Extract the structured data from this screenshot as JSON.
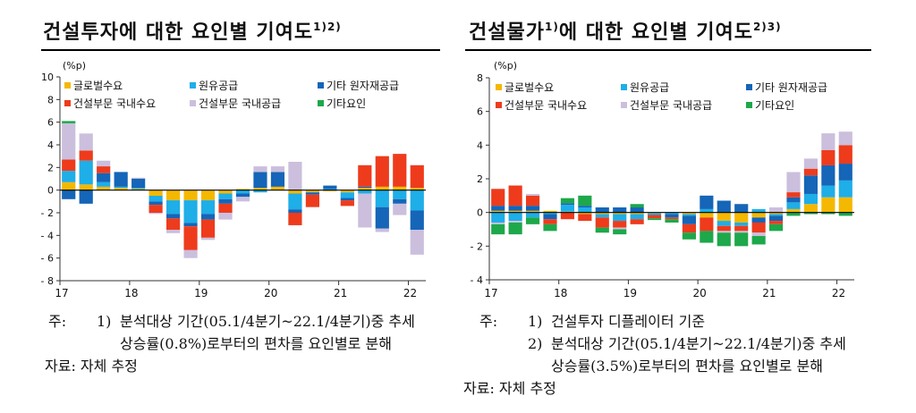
{
  "colors": {
    "global_demand": "#F5B800",
    "oil_supply": "#1EAEE8",
    "other_raw_supply": "#1565B8",
    "domestic_demand": "#EE3B1C",
    "domestic_supply": "#CBBFDD",
    "other_factors": "#1DA84A"
  },
  "chart_data": [
    {
      "type": "bar",
      "stacked": true,
      "title": "건설투자에 대한 요인별 기여도",
      "title_sup": "1)2)",
      "unit": "(%p)",
      "ylim": [
        -8,
        10
      ],
      "yticks": [
        "10",
        "8",
        "6",
        "4",
        "2",
        "0",
        "- 2",
        "- 4",
        "- 6",
        "- 8"
      ],
      "xticks": [
        "17",
        "18",
        "19",
        "20",
        "21",
        "22"
      ],
      "legend": [
        "글로벌수요",
        "원유공급",
        "기타 원자재공급",
        "건설부문 국내수요",
        "건설부문 국내공급",
        "기타요인"
      ],
      "categories": [
        "17Q1",
        "17Q2",
        "17Q3",
        "17Q4",
        "18Q1",
        "18Q2",
        "18Q3",
        "18Q4",
        "19Q1",
        "19Q2",
        "19Q3",
        "19Q4",
        "20Q1",
        "20Q2",
        "20Q3",
        "20Q4",
        "21Q1",
        "21Q2",
        "21Q3",
        "21Q4",
        "22Q1"
      ],
      "series": [
        {
          "name": "글로벌수요",
          "values": [
            0.7,
            0.5,
            0.3,
            0.2,
            0.1,
            -0.5,
            -0.9,
            -0.9,
            -0.9,
            -0.3,
            0.1,
            0.2,
            0.3,
            -0.3,
            -0.2,
            -0.1,
            -0.2,
            0.2,
            0.3,
            0.3,
            0.2
          ]
        },
        {
          "name": "원유공급",
          "values": [
            1.0,
            2.1,
            0.4,
            0.1,
            0.1,
            -0.5,
            -1.2,
            -2.0,
            -1.2,
            -0.5,
            -0.3,
            -0.2,
            0.0,
            -1.4,
            0.0,
            0.1,
            -0.5,
            -0.3,
            -1.5,
            -0.8,
            -1.8
          ]
        },
        {
          "name": "기타 원자재공급",
          "values": [
            -0.8,
            -1.2,
            0.8,
            1.3,
            0.8,
            -0.3,
            -0.4,
            -0.3,
            -0.5,
            -0.4,
            -0.3,
            1.4,
            1.3,
            -0.3,
            -0.2,
            0.3,
            -0.2,
            0.1,
            -1.9,
            -0.4,
            -1.7
          ]
        },
        {
          "name": "건설부문 국내수요",
          "values": [
            1.0,
            0.9,
            0.6,
            0.0,
            0.0,
            -0.7,
            -1.0,
            -2.1,
            -1.6,
            -0.8,
            0.0,
            0.0,
            0.0,
            -1.1,
            -1.1,
            0.0,
            -0.5,
            1.9,
            2.7,
            2.9,
            2.0
          ]
        },
        {
          "name": "건설부문 국내공급",
          "values": [
            3.2,
            1.5,
            0.5,
            0.0,
            0.1,
            -0.1,
            -0.3,
            -0.7,
            -0.2,
            -0.6,
            -0.4,
            0.5,
            0.5,
            2.5,
            0.0,
            0.0,
            0.0,
            -3.0,
            -0.3,
            -1.0,
            -2.2
          ]
        },
        {
          "name": "기타요인",
          "values": [
            0.2,
            0.0,
            0.0,
            0.0,
            0.0,
            0.0,
            0.0,
            0.0,
            0.0,
            0.0,
            0.0,
            0.0,
            0.0,
            0.0,
            0.0,
            0.0,
            0.0,
            0.0,
            0.0,
            0.0,
            0.0
          ]
        }
      ]
    },
    {
      "type": "bar",
      "stacked": true,
      "title": "건설물가에 대한 요인별 기여도",
      "title_pre": "건설물가",
      "title_pre_sup": "1)",
      "title_post": "에 대한 요인별 기여도",
      "title_sup": "2)3)",
      "unit": "(%p)",
      "ylim": [
        -4,
        8
      ],
      "yticks": [
        "8",
        "6",
        "4",
        "2",
        "0",
        "- 2",
        "- 4"
      ],
      "xticks": [
        "17",
        "18",
        "19",
        "20",
        "21",
        "22"
      ],
      "legend": [
        "글로벌수요",
        "원유공급",
        "기타 원자재공급",
        "건설부문 국내수요",
        "건설부문 국내공급",
        "기타요인"
      ],
      "categories": [
        "17Q1",
        "17Q2",
        "17Q3",
        "17Q4",
        "18Q1",
        "18Q2",
        "18Q3",
        "18Q4",
        "19Q1",
        "19Q2",
        "19Q3",
        "19Q4",
        "20Q1",
        "20Q2",
        "20Q3",
        "20Q4",
        "21Q1",
        "21Q2",
        "21Q3",
        "21Q4",
        "22Q1"
      ],
      "series": [
        {
          "name": "글로벌수요",
          "values": [
            0.1,
            0.1,
            0.1,
            0.1,
            0.05,
            -0.1,
            -0.1,
            -0.1,
            -0.1,
            -0.05,
            0.0,
            -0.1,
            -0.3,
            -0.5,
            -0.6,
            -0.3,
            -0.1,
            0.2,
            0.5,
            0.9,
            0.9
          ]
        },
        {
          "name": "원유공급",
          "values": [
            -0.6,
            -0.5,
            -0.3,
            -0.1,
            0.4,
            0.3,
            -0.2,
            -0.4,
            -0.3,
            -0.1,
            -0.1,
            -0.1,
            0.2,
            -0.3,
            -0.2,
            0.2,
            -0.1,
            0.4,
            0.6,
            0.7,
            1.0
          ]
        },
        {
          "name": "기타 원자재공급",
          "values": [
            0.3,
            0.3,
            0.3,
            -0.3,
            0.1,
            0.1,
            0.3,
            0.3,
            0.3,
            0.0,
            -0.2,
            -0.5,
            0.8,
            0.7,
            0.5,
            -0.3,
            -0.3,
            0.3,
            1.1,
            1.2,
            1.0
          ]
        },
        {
          "name": "건설부문 국내수요",
          "values": [
            1.0,
            1.2,
            0.6,
            -0.3,
            -0.4,
            -0.4,
            -0.6,
            -0.4,
            -0.3,
            -0.2,
            -0.1,
            -0.5,
            -0.8,
            -0.3,
            -0.3,
            -0.6,
            -0.2,
            0.3,
            0.4,
            0.9,
            1.1
          ]
        },
        {
          "name": "건설부문 국내공급",
          "values": [
            -0.1,
            -0.1,
            0.1,
            0.0,
            0.0,
            0.0,
            0.0,
            -0.1,
            0.0,
            0.0,
            0.0,
            0.0,
            0.0,
            -0.1,
            -0.1,
            -0.2,
            0.3,
            1.2,
            0.6,
            1.0,
            0.8
          ]
        },
        {
          "name": "기타요인",
          "values": [
            -0.6,
            -0.7,
            -0.4,
            -0.4,
            0.3,
            0.6,
            -0.3,
            -0.3,
            0.2,
            -0.1,
            -0.2,
            -0.4,
            -0.7,
            -0.8,
            -0.8,
            -0.5,
            -0.4,
            -0.2,
            -0.1,
            -0.1,
            -0.2
          ]
        }
      ]
    }
  ],
  "notes_left": {
    "label": "주:",
    "line1_num": "1)",
    "line1": "분석대상 기간(05.1/4분기~22.1/4분기)중 추세",
    "line2": "상승률(0.8%)로부터의 편차를 요인별로 분해",
    "source": "자료: 자체 추정"
  },
  "notes_right": {
    "label": "주:",
    "line1_num": "1)",
    "line1": "건설투자 디플레이터 기준",
    "line2_num": "2)",
    "line2": "분석대상 기간(05.1/4분기~22.1/4분기)중 추세",
    "line3": "상승률(3.5%)로부터의 편차를 요인별로 분해",
    "source": "자료: 자체 추정"
  }
}
